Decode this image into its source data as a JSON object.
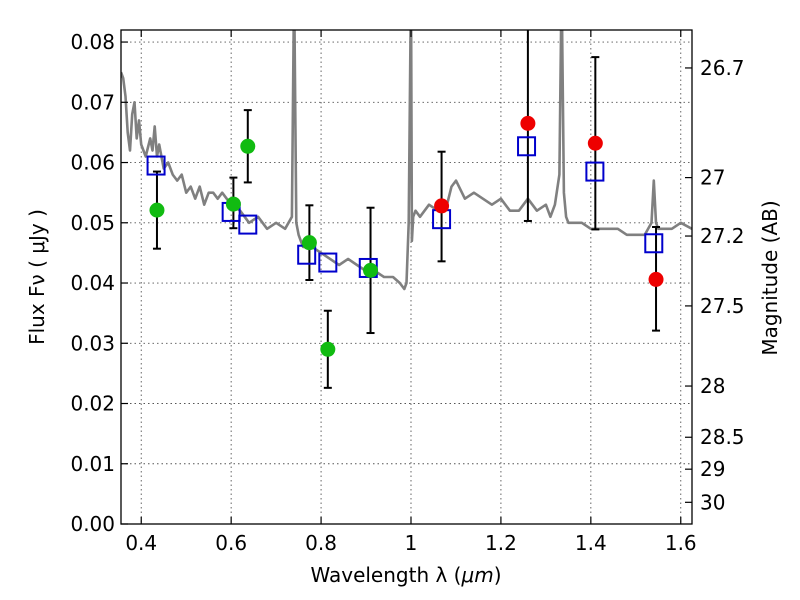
{
  "chart_data": {
    "type": "scatter",
    "xlabel_prefix": "Wavelength  λ (",
    "xlabel_unit": "μm",
    "xlabel_suffix": ")",
    "ylabel": "Flux  Fν  ( μJy )",
    "ylabel_right": "Magnitude (AB)",
    "xlim": [
      0.355,
      1.625
    ],
    "ylim": [
      0.0,
      0.082
    ],
    "grid": true,
    "x_ticks": [
      0.4,
      0.6,
      0.8,
      1.0,
      1.2,
      1.4,
      1.6
    ],
    "x_tick_labels": [
      "0.4",
      "0.6",
      "0.8",
      "1",
      "1.2",
      "1.4",
      "1.6"
    ],
    "y_ticks": [
      0.0,
      0.01,
      0.02,
      0.03,
      0.04,
      0.05,
      0.06,
      0.07,
      0.08
    ],
    "y_tick_labels": [
      "0.00",
      "0.01",
      "0.02",
      "0.03",
      "0.04",
      "0.05",
      "0.06",
      "0.07",
      "0.08"
    ],
    "right_ticks": [
      {
        "label": "26.7",
        "flux": 0.0757
      },
      {
        "label": "27",
        "flux": 0.0575
      },
      {
        "label": "27.2",
        "flux": 0.0478
      },
      {
        "label": "27.5",
        "flux": 0.0362
      },
      {
        "label": "28",
        "flux": 0.0229
      },
      {
        "label": "28.5",
        "flux": 0.0144
      },
      {
        "label": "29",
        "flux": 0.0091
      },
      {
        "label": "30",
        "flux": 0.0036
      }
    ],
    "colors": {
      "model": "#808080",
      "green_points": "#11bb11",
      "red_points": "#ee0000",
      "model_flux": "#0000cc",
      "errorbar": "#000000"
    },
    "model_spectrum": {
      "x": [
        0.355,
        0.36,
        0.365,
        0.37,
        0.375,
        0.38,
        0.385,
        0.39,
        0.395,
        0.4,
        0.41,
        0.42,
        0.425,
        0.43,
        0.435,
        0.44,
        0.45,
        0.46,
        0.47,
        0.48,
        0.49,
        0.5,
        0.51,
        0.52,
        0.53,
        0.54,
        0.55,
        0.56,
        0.57,
        0.58,
        0.6,
        0.62,
        0.64,
        0.66,
        0.68,
        0.7,
        0.72,
        0.735,
        0.74,
        0.745,
        0.75,
        0.755,
        0.76,
        0.78,
        0.8,
        0.82,
        0.84,
        0.86,
        0.88,
        0.9,
        0.92,
        0.94,
        0.96,
        0.975,
        0.985,
        0.99,
        0.995,
        1.0,
        1.002,
        1.005,
        1.01,
        1.02,
        1.04,
        1.06,
        1.08,
        1.09,
        1.1,
        1.12,
        1.14,
        1.16,
        1.18,
        1.2,
        1.22,
        1.24,
        1.26,
        1.28,
        1.3,
        1.31,
        1.32,
        1.33,
        1.335,
        1.34,
        1.345,
        1.35,
        1.36,
        1.38,
        1.4,
        1.42,
        1.44,
        1.46,
        1.48,
        1.5,
        1.52,
        1.535,
        1.54,
        1.545,
        1.55,
        1.56,
        1.58,
        1.6,
        1.625
      ],
      "y": [
        0.075,
        0.074,
        0.071,
        0.065,
        0.062,
        0.068,
        0.07,
        0.064,
        0.067,
        0.063,
        0.061,
        0.064,
        0.062,
        0.066,
        0.061,
        0.063,
        0.059,
        0.06,
        0.058,
        0.057,
        0.058,
        0.055,
        0.056,
        0.054,
        0.056,
        0.053,
        0.055,
        0.055,
        0.054,
        0.055,
        0.053,
        0.052,
        0.05,
        0.051,
        0.049,
        0.05,
        0.049,
        0.051,
        0.09,
        0.05,
        0.048,
        0.047,
        0.046,
        0.046,
        0.045,
        0.044,
        0.043,
        0.044,
        0.043,
        0.042,
        0.042,
        0.041,
        0.041,
        0.04,
        0.039,
        0.04,
        0.05,
        0.09,
        0.047,
        0.051,
        0.052,
        0.051,
        0.053,
        0.052,
        0.053,
        0.056,
        0.057,
        0.054,
        0.055,
        0.054,
        0.053,
        0.054,
        0.052,
        0.052,
        0.054,
        0.052,
        0.053,
        0.051,
        0.053,
        0.058,
        0.09,
        0.055,
        0.051,
        0.05,
        0.05,
        0.05,
        0.049,
        0.049,
        0.049,
        0.049,
        0.048,
        0.048,
        0.048,
        0.05,
        0.057,
        0.05,
        0.049,
        0.049,
        0.049,
        0.05,
        0.049
      ]
    },
    "green_points": [
      {
        "x": 0.435,
        "y": 0.0521,
        "err_low": 0.0457,
        "err_high": 0.0585
      },
      {
        "x": 0.605,
        "y": 0.0531,
        "err_low": 0.0491,
        "err_high": 0.0575
      },
      {
        "x": 0.637,
        "y": 0.0627,
        "err_low": 0.0567,
        "err_high": 0.0687
      },
      {
        "x": 0.774,
        "y": 0.0467,
        "err_low": 0.0405,
        "err_high": 0.0529
      },
      {
        "x": 0.815,
        "y": 0.029,
        "err_low": 0.0226,
        "err_high": 0.0354
      },
      {
        "x": 0.91,
        "y": 0.0421,
        "err_low": 0.0317,
        "err_high": 0.0525
      }
    ],
    "red_points": [
      {
        "x": 1.068,
        "y": 0.0528,
        "err_low": 0.0436,
        "err_high": 0.0618
      },
      {
        "x": 1.26,
        "y": 0.0665,
        "err_low": 0.0503,
        "err_high": 0.083
      },
      {
        "x": 1.41,
        "y": 0.0632,
        "err_low": 0.0489,
        "err_high": 0.0775
      },
      {
        "x": 1.545,
        "y": 0.0406,
        "err_low": 0.0321,
        "err_high": 0.0493
      }
    ],
    "model_flux": [
      {
        "x": 0.433,
        "y": 0.0595
      },
      {
        "x": 0.6,
        "y": 0.0518
      },
      {
        "x": 0.637,
        "y": 0.0497
      },
      {
        "x": 0.768,
        "y": 0.0447
      },
      {
        "x": 0.815,
        "y": 0.0434
      },
      {
        "x": 0.905,
        "y": 0.0425
      },
      {
        "x": 1.068,
        "y": 0.0506
      },
      {
        "x": 1.257,
        "y": 0.0627
      },
      {
        "x": 1.409,
        "y": 0.0585
      },
      {
        "x": 1.54,
        "y": 0.0466
      }
    ]
  }
}
